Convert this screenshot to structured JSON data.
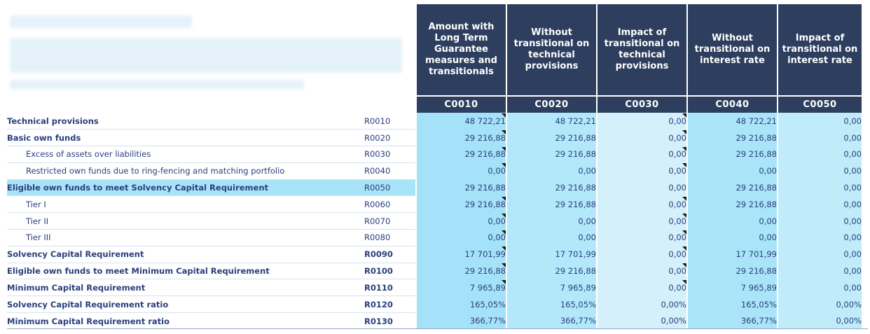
{
  "columns": [
    {
      "header": "Amount with Long Term Guarantee measures and transitionals",
      "code": "C0010"
    },
    {
      "header": "Without transitional on technical provisions",
      "code": "C0020"
    },
    {
      "header": "Impact of transitional on technical provisions",
      "code": "C0030"
    },
    {
      "header": "Without transitional on interest rate",
      "code": "C0040"
    },
    {
      "header": "Impact of transitional on interest rate",
      "code": "C0050"
    }
  ],
  "rows": [
    {
      "label": "Technical provisions",
      "code": "R0010",
      "values": [
        "48 722,21",
        "48 722,21",
        "0,00",
        "48 722,21",
        "0,00"
      ]
    },
    {
      "label": "Basic own funds",
      "code": "R0020",
      "values": [
        "29 216,88",
        "29 216,88",
        "0,00",
        "29 216,88",
        "0,00"
      ]
    },
    {
      "label": "Excess of assets over liabilities",
      "code": "R0030",
      "values": [
        "29 216,88",
        "29 216,88",
        "0,00",
        "29 216,88",
        "0,00"
      ]
    },
    {
      "label": "Restricted own funds due to ring-fencing and matching portfolio",
      "code": "R0040",
      "values": [
        "0,00",
        "0,00",
        "0,00",
        "0,00",
        "0,00"
      ]
    },
    {
      "label": "Eligible own funds to meet Solvency Capital Requirement",
      "code": "R0050",
      "values": [
        "29 216,88",
        "29 216,88",
        "0,00",
        "29 216,88",
        "0,00"
      ]
    },
    {
      "label": "Tier I",
      "code": "R0060",
      "values": [
        "29 216,88",
        "29 216,88",
        "0,00",
        "29 216,88",
        "0,00"
      ]
    },
    {
      "label": "Tier II",
      "code": "R0070",
      "values": [
        "0,00",
        "0,00",
        "0,00",
        "0,00",
        "0,00"
      ]
    },
    {
      "label": "Tier III",
      "code": "R0080",
      "values": [
        "0,00",
        "0,00",
        "0,00",
        "0,00",
        "0,00"
      ]
    },
    {
      "label": "Solvency Capital Requirement",
      "code": "R0090",
      "values": [
        "17 701,99",
        "17 701,99",
        "0,00",
        "17 701,99",
        "0,00"
      ]
    },
    {
      "label": "Eligible own funds to meet Minimum Capital Requirement",
      "code": "R0100",
      "values": [
        "29 216,88",
        "29 216,88",
        "0,00",
        "29 216,88",
        "0,00"
      ]
    },
    {
      "label": "Minimum Capital Requirement",
      "code": "R0110",
      "values": [
        "7 965,89",
        "7 965,89",
        "0,00",
        "7 965,89",
        "0,00"
      ]
    },
    {
      "label": "Solvency Capital Requirement ratio",
      "code": "R0120",
      "values": [
        "165,05%",
        "165,05%",
        "0,00%",
        "165,05%",
        "0,00%"
      ]
    },
    {
      "label": "Minimum Capital Requirement ratio",
      "code": "R0130",
      "values": [
        "366,77%",
        "366,77%",
        "0,00%",
        "366,77%",
        "0,00%"
      ]
    }
  ],
  "colors": {
    "header_bg": "#2d3e5e",
    "header_text": "#ffffff",
    "value_bg": "#a3e2f8",
    "label_text": "#2b3f7c",
    "highlight_row": "#a8e4f8"
  }
}
